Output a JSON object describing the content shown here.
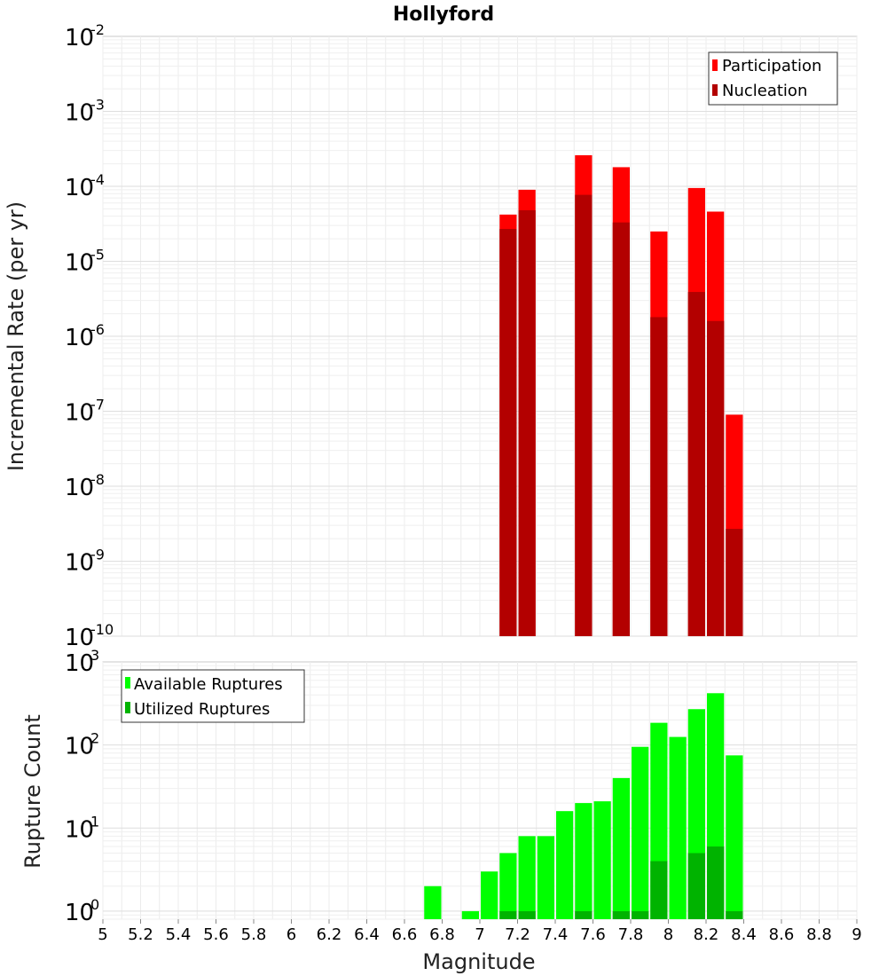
{
  "chart_data": [
    {
      "type": "bar",
      "title": "Hollyford",
      "xlabel": "",
      "ylabel": "Incremental Rate (per yr)",
      "yscale": "log",
      "ylim": [
        1e-10,
        0.01
      ],
      "xlim": [
        5,
        9
      ],
      "legend_position": "top-right",
      "y_ticks": [
        {
          "base": "10",
          "exp": "-10"
        },
        {
          "base": "10",
          "exp": "-9"
        },
        {
          "base": "10",
          "exp": "-8"
        },
        {
          "base": "10",
          "exp": "-7"
        },
        {
          "base": "10",
          "exp": "-6"
        },
        {
          "base": "10",
          "exp": "-5"
        },
        {
          "base": "10",
          "exp": "-4"
        },
        {
          "base": "10",
          "exp": "-3"
        },
        {
          "base": "10",
          "exp": "-2"
        }
      ],
      "x": [
        7.15,
        7.25,
        7.55,
        7.75,
        7.95,
        8.15,
        8.25,
        8.35
      ],
      "series": [
        {
          "name": "Participation",
          "color": "#ff0000",
          "values": [
            4.2e-05,
            9e-05,
            0.00026,
            0.00018,
            2.5e-05,
            9.5e-05,
            4.6e-05,
            9e-08
          ]
        },
        {
          "name": "Nucleation",
          "color": "#b30000",
          "values": [
            2.7e-05,
            4.8e-05,
            7.7e-05,
            3.3e-05,
            1.8e-06,
            3.9e-06,
            1.6e-06,
            2.7e-09
          ]
        }
      ]
    },
    {
      "type": "bar",
      "title": "",
      "xlabel": "Magnitude",
      "ylabel": "Rupture Count",
      "yscale": "log",
      "ylim": [
        0.8,
        1000
      ],
      "xlim": [
        5,
        9
      ],
      "legend_position": "top-left",
      "y_ticks": [
        {
          "base": "10",
          "exp": "0"
        },
        {
          "base": "10",
          "exp": "1"
        },
        {
          "base": "10",
          "exp": "2"
        },
        {
          "base": "10",
          "exp": "3"
        }
      ],
      "x_ticks": [
        "5",
        "5.2",
        "5.4",
        "5.6",
        "5.8",
        "6",
        "6.2",
        "6.4",
        "6.6",
        "6.8",
        "7",
        "7.2",
        "7.4",
        "7.6",
        "7.8",
        "8",
        "8.2",
        "8.4",
        "8.6",
        "8.8",
        "9"
      ],
      "x": [
        6.75,
        6.95,
        7.05,
        7.15,
        7.25,
        7.35,
        7.45,
        7.55,
        7.65,
        7.75,
        7.85,
        7.95,
        8.05,
        8.15,
        8.25,
        8.35
      ],
      "series": [
        {
          "name": "Available Ruptures",
          "color": "#00ff00",
          "values": [
            2,
            1,
            3,
            5,
            8,
            8,
            16,
            20,
            21,
            40,
            95,
            185,
            125,
            270,
            420,
            75
          ]
        },
        {
          "name": "Utilized Ruptures",
          "color": "#00b300",
          "values": [
            0,
            0,
            0,
            1,
            1,
            0,
            0,
            1,
            0,
            1,
            1,
            4,
            0,
            5,
            6,
            1
          ]
        }
      ]
    }
  ]
}
